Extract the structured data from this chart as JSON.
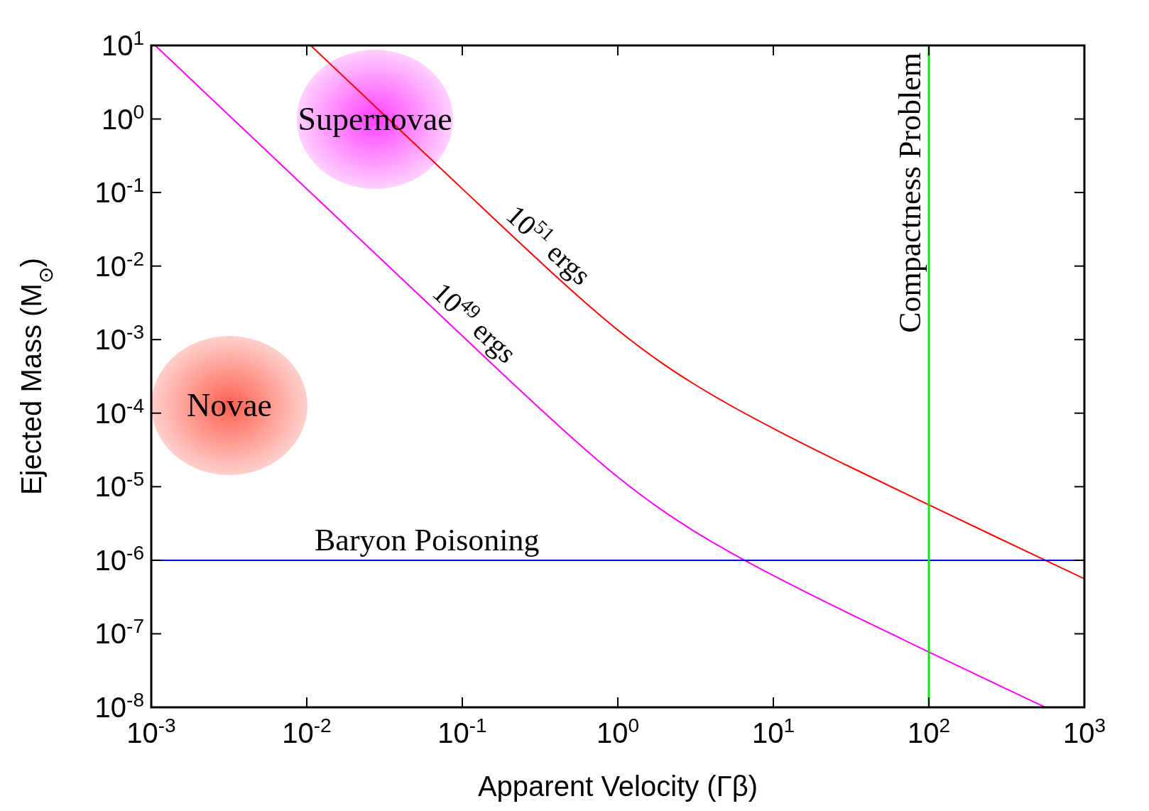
{
  "chart_data": {
    "type": "line",
    "xlabel": "Apparent Velocity (Γβ)",
    "ylabel": "Ejected Mass (M$_{⊙}$)",
    "log": "xy",
    "xlim": [
      0.001,
      1000
    ],
    "ylim": [
      1e-08,
      10
    ],
    "xticks": [
      {
        "value": 0.001,
        "label": "10$^{-3}$"
      },
      {
        "value": 0.01,
        "label": "10$^{-2}$"
      },
      {
        "value": 0.1,
        "label": "10$^{-1}$"
      },
      {
        "value": 1,
        "label": "10$^{0}$"
      },
      {
        "value": 10,
        "label": "10$^{1}$"
      },
      {
        "value": 100,
        "label": "10$^{2}$"
      },
      {
        "value": 1000,
        "label": "10$^{3}$"
      }
    ],
    "yticks": [
      {
        "value": 1e-08,
        "label": "10$^{-8}$"
      },
      {
        "value": 1e-07,
        "label": "10$^{-7}$"
      },
      {
        "value": 1e-06,
        "label": "10$^{-6}$"
      },
      {
        "value": 1e-05,
        "label": "10$^{-5}$"
      },
      {
        "value": 0.0001,
        "label": "10$^{-4}$"
      },
      {
        "value": 0.001,
        "label": "10$^{-3}$"
      },
      {
        "value": 0.01,
        "label": "10$^{-2}$"
      },
      {
        "value": 0.1,
        "label": "10$^{-1}$"
      },
      {
        "value": 1,
        "label": "10$^{0}$"
      },
      {
        "value": 10,
        "label": "10$^{1}$"
      }
    ],
    "grid": false,
    "legend": false,
    "marker": "none",
    "line_style": "solid",
    "series": [
      {
        "name": "10$^{51}$ ergs",
        "color": "#ff0000",
        "x": [
          0.0106,
          0.03,
          0.1,
          0.3,
          0.5,
          1,
          2,
          3,
          5,
          10,
          20,
          30,
          100,
          300,
          1000
        ],
        "values": [
          10,
          1.244,
          0.1123,
          0.01272,
          0.00475,
          0.001352,
          0.000453,
          0.000259,
          0.0001366,
          6.19e-05,
          2.94e-05,
          1.93e-05,
          5.66e-06,
          1.87e-06,
          5.6e-07
        ]
      },
      {
        "name": "10$^{49}$ ergs",
        "color": "#ff00ff",
        "x": [
          0.00106,
          0.003,
          0.01,
          0.03,
          0.1,
          0.3,
          0.5,
          1,
          2,
          3,
          5,
          10,
          20,
          30,
          100,
          300,
          560
        ],
        "values": [
          10,
          1.244,
          0.112,
          0.01244,
          0.001123,
          0.0001272,
          4.75e-05,
          1.352e-05,
          4.53e-06,
          2.59e-06,
          1.366e-06,
          6.19e-07,
          2.94e-07,
          1.93e-07,
          5.66e-08,
          1.87e-08,
          1e-08
        ]
      }
    ],
    "ref_lines": [
      {
        "axis": "y",
        "value": 1e-06,
        "label": "Baryon Poisoning",
        "color": "#0000ff"
      },
      {
        "axis": "x",
        "value": 100,
        "label": "Compactness Problem",
        "color": "#00ee00"
      }
    ],
    "annotations": [
      "Supernovae",
      "Novae"
    ]
  }
}
